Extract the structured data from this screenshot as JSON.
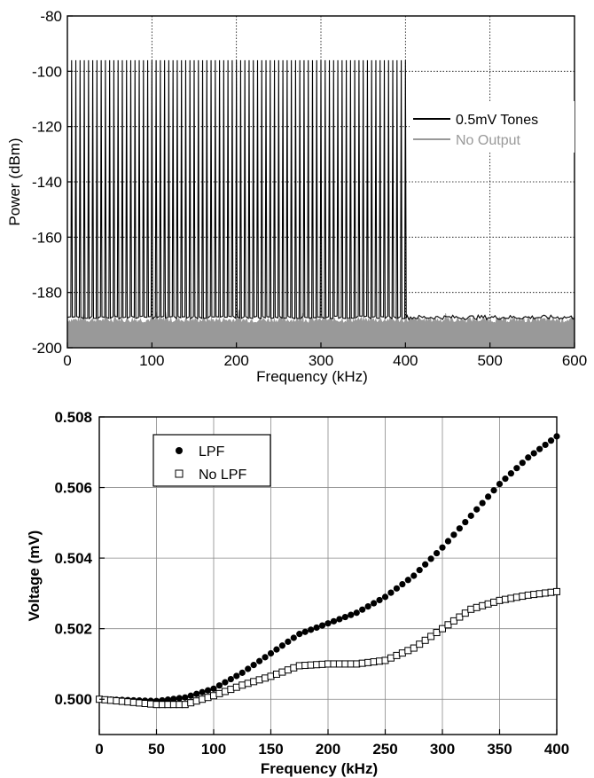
{
  "chart_data": [
    {
      "type": "line",
      "xlabel": "Frequency (kHz)",
      "ylabel": "Power (dBm)",
      "xlim": [
        0,
        600
      ],
      "ylim": [
        -200,
        -80
      ],
      "xticks": [
        "0",
        "100",
        "200",
        "300",
        "400",
        "500",
        "600"
      ],
      "yticks": [
        "-80",
        "-100",
        "-120",
        "-140",
        "-160",
        "-180",
        "-200"
      ],
      "grid": true,
      "legend_position": "right",
      "series": [
        {
          "name": "0.5mV Tones",
          "color": "#000000",
          "tone_start_khz": 5,
          "tone_stop_khz": 400,
          "tone_spacing_khz": 5,
          "tone_power_dbm": -96,
          "noise_floor_dbm": -189
        },
        {
          "name": "No Output",
          "color": "#999999",
          "x_range_khz": [
            0,
            600
          ],
          "noise_floor_dbm": -190
        }
      ]
    },
    {
      "type": "scatter",
      "xlabel": "Frequency (kHz)",
      "ylabel": "Voltage (mV)",
      "xlim": [
        0,
        400
      ],
      "ylim": [
        0.499,
        0.508
      ],
      "xticks": [
        "0",
        "50",
        "100",
        "150",
        "200",
        "250",
        "300",
        "350",
        "400"
      ],
      "yticks": [
        "0.500",
        "0.502",
        "0.504",
        "0.506",
        "0.508"
      ],
      "grid": true,
      "legend_position": "top-left",
      "series": [
        {
          "name": "LPF",
          "marker": "filled-circle",
          "x": [
            0,
            50,
            75,
            100,
            125,
            150,
            175,
            200,
            225,
            250,
            275,
            300,
            325,
            350,
            375,
            400
          ],
          "values": [
            0.5,
            0.49995,
            0.50005,
            0.5003,
            0.50075,
            0.5013,
            0.50185,
            0.50215,
            0.50245,
            0.5029,
            0.5035,
            0.5043,
            0.5052,
            0.5061,
            0.50685,
            0.50745
          ]
        },
        {
          "name": "No LPF",
          "marker": "open-square",
          "x": [
            0,
            50,
            75,
            100,
            125,
            150,
            175,
            200,
            225,
            250,
            275,
            300,
            325,
            350,
            375,
            400
          ],
          "values": [
            0.5,
            0.49985,
            0.49985,
            0.5001,
            0.5004,
            0.50065,
            0.50095,
            0.501,
            0.501,
            0.5011,
            0.50145,
            0.502,
            0.50255,
            0.5028,
            0.50295,
            0.50305
          ]
        }
      ]
    }
  ]
}
